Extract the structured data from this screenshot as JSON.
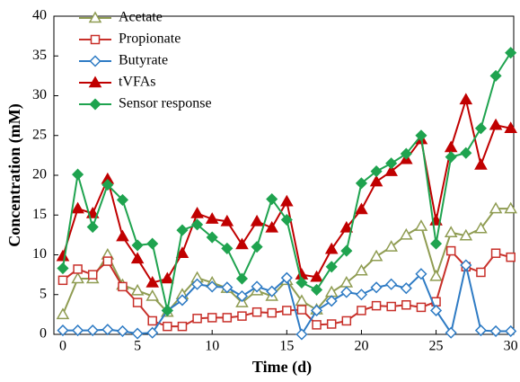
{
  "chart_data": {
    "type": "line",
    "x": [
      0,
      1,
      2,
      3,
      4,
      5,
      6,
      7,
      8,
      9,
      10,
      11,
      12,
      13,
      14,
      15,
      16,
      17,
      18,
      19,
      20,
      21,
      22,
      23,
      24,
      25,
      26,
      27,
      28,
      29,
      30
    ],
    "x_label": "Time (d)",
    "y_label": "Concentration (mM)",
    "xlim": [
      -0.6,
      30.2
    ],
    "ylim": [
      0,
      40
    ],
    "xticks": [
      0,
      5,
      10,
      15,
      20,
      25,
      30
    ],
    "yticks": [
      0,
      5,
      10,
      15,
      20,
      25,
      30,
      35,
      40
    ],
    "grid": false,
    "legend": "upper left",
    "series": [
      {
        "name": "Acetate",
        "color": "#8f9c52",
        "marker": "triangle",
        "filled": false,
        "values": [
          2.5,
          7,
          7,
          10,
          6.2,
          5.5,
          4.8,
          2.8,
          5,
          7.1,
          6.5,
          5.8,
          4,
          5.5,
          4.8,
          6.8,
          4.2,
          3.1,
          5.3,
          6.5,
          8,
          9.8,
          11,
          12.5,
          13.6,
          7.3,
          12.8,
          12.4,
          13.3,
          15.8,
          15.8
        ]
      },
      {
        "name": "Propionate",
        "color": "#c8302a",
        "marker": "square",
        "filled": false,
        "values": [
          6.8,
          8.2,
          7.5,
          9.2,
          6,
          4,
          1.7,
          1,
          1,
          2,
          2.1,
          2.1,
          2.3,
          2.8,
          2.7,
          3,
          3.1,
          1.2,
          1.3,
          1.7,
          3,
          3.6,
          3.5,
          3.7,
          3.4,
          4.1,
          10.5,
          8.5,
          7.8,
          10.2,
          9.7
        ]
      },
      {
        "name": "Butyrate",
        "color": "#2e7bc4",
        "marker": "diamond",
        "filled": false,
        "values": [
          0.5,
          0.5,
          0.5,
          0.6,
          0.4,
          0.1,
          0.2,
          3,
          4.3,
          6.3,
          6,
          5.9,
          4.8,
          6,
          5.4,
          7.1,
          0,
          3,
          4.2,
          5.3,
          5,
          5.9,
          6.3,
          5.8,
          7.6,
          3,
          0.2,
          8.7,
          0.5,
          0.4,
          0.4
        ]
      },
      {
        "name": "tVFAs",
        "color": "#c00000",
        "marker": "triangle",
        "filled": true,
        "values": [
          9.8,
          15.8,
          15.2,
          19.5,
          12.3,
          9.5,
          6.5,
          7,
          10.2,
          15.2,
          14.5,
          14.2,
          11.3,
          14.2,
          13.4,
          16.7,
          7.5,
          7.2,
          10.7,
          13.4,
          15.7,
          19.2,
          20.5,
          22,
          24.5,
          14.3,
          23.5,
          29.5,
          21.3,
          26.3,
          25.9
        ]
      },
      {
        "name": "Sensor response",
        "color": "#1fa34f",
        "marker": "diamond",
        "filled": true,
        "values": [
          8.3,
          20.1,
          13.5,
          18.8,
          16.9,
          11.2,
          11.4,
          3,
          13.1,
          13.8,
          12.2,
          10.8,
          7,
          11,
          17,
          14.4,
          6.5,
          5.6,
          8.5,
          10.5,
          19,
          20.5,
          21.5,
          22.7,
          25,
          11.4,
          22.3,
          22.8,
          25.9,
          32.5,
          35.4
        ]
      }
    ]
  }
}
